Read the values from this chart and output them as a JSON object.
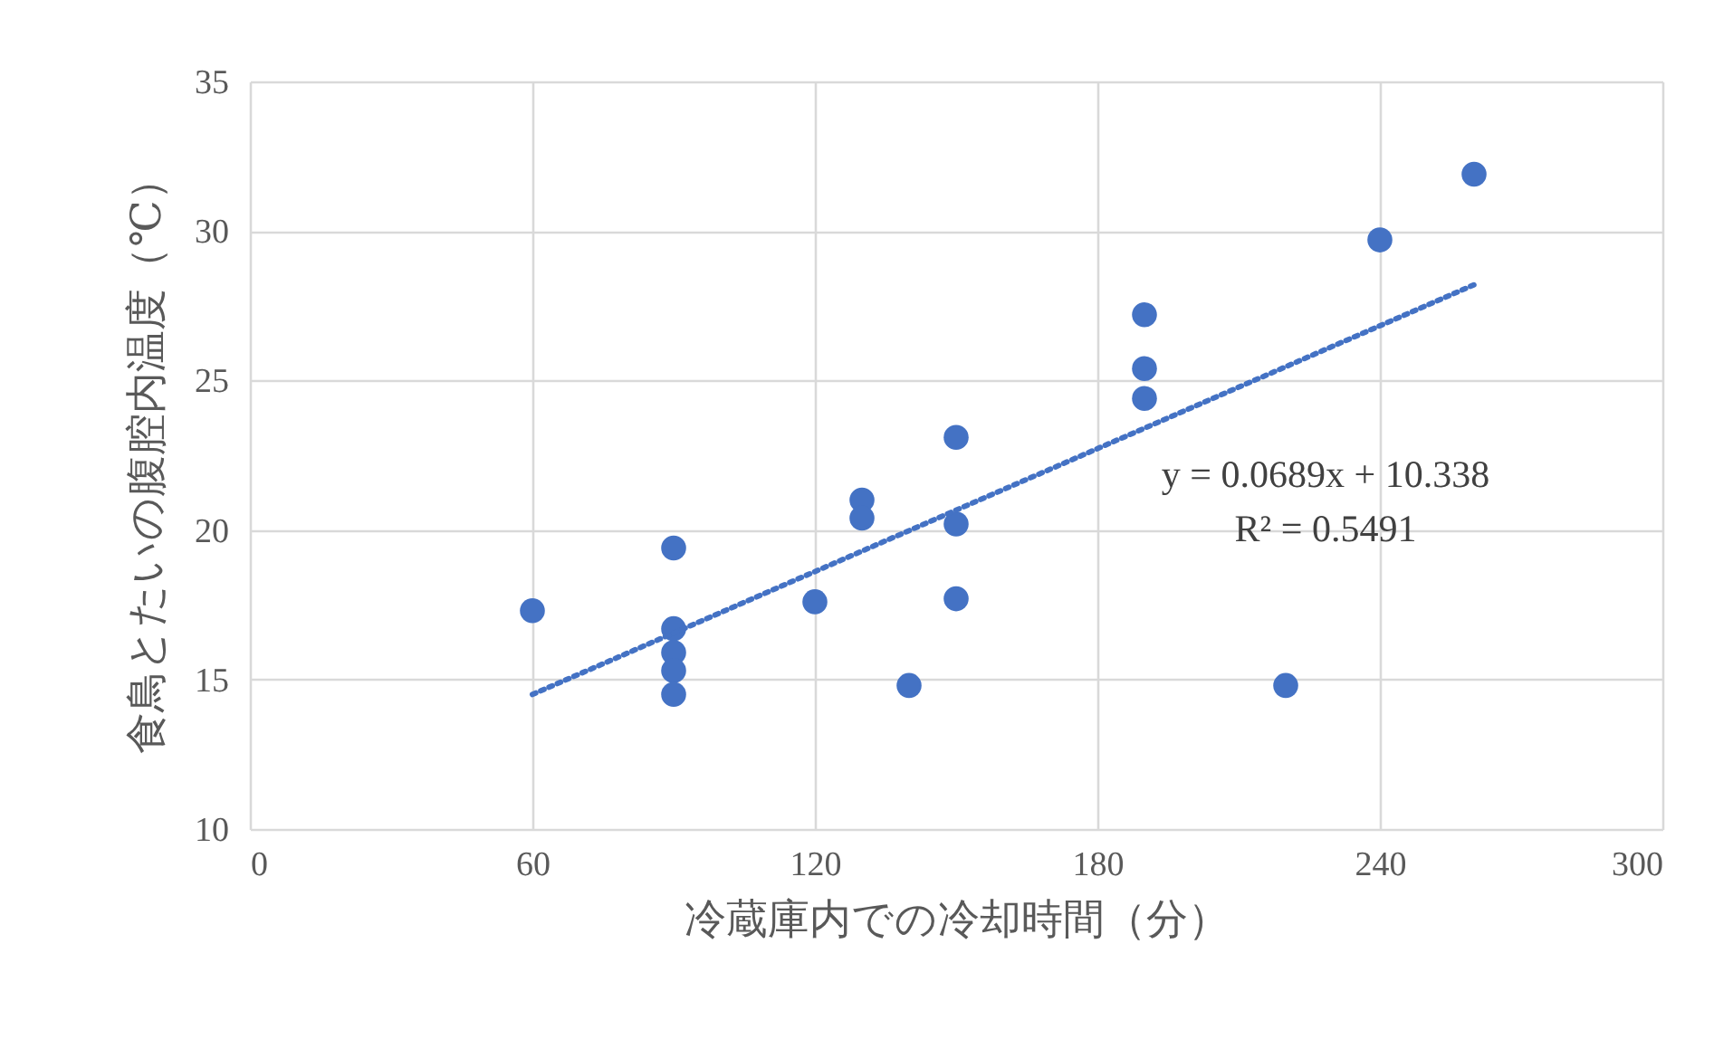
{
  "chart_data": {
    "type": "scatter",
    "xlabel": "冷蔵庫内での冷却時間（分）",
    "ylabel": "食鳥とたいの腹腔内温度（℃）",
    "xlim": [
      0,
      300
    ],
    "xticks": [
      0,
      60,
      120,
      180,
      240,
      300
    ],
    "ylim": [
      10,
      35
    ],
    "yticks": [
      10,
      15,
      20,
      25,
      30,
      35
    ],
    "grid": true,
    "series": [
      {
        "marker": "circle",
        "color": "#4472c4",
        "x": [
          60,
          90,
          90,
          90,
          90,
          90,
          120,
          130,
          130,
          140,
          150,
          150,
          150,
          190,
          190,
          190,
          220,
          240,
          260
        ],
        "values": [
          17.3,
          19.4,
          16.7,
          15.9,
          15.3,
          14.5,
          17.6,
          21.0,
          20.4,
          14.8,
          23.1,
          20.2,
          17.7,
          27.2,
          25.4,
          24.4,
          14.8,
          29.7,
          31.9
        ]
      },
      {
        "type": "line",
        "color": "#4472c4",
        "line_style": "dotted",
        "x": [
          60,
          260
        ],
        "values": [
          14.5,
          28.2
        ]
      }
    ],
    "annotations": [
      "y = 0.0689x + 10.338",
      "R² = 0.5491"
    ]
  }
}
